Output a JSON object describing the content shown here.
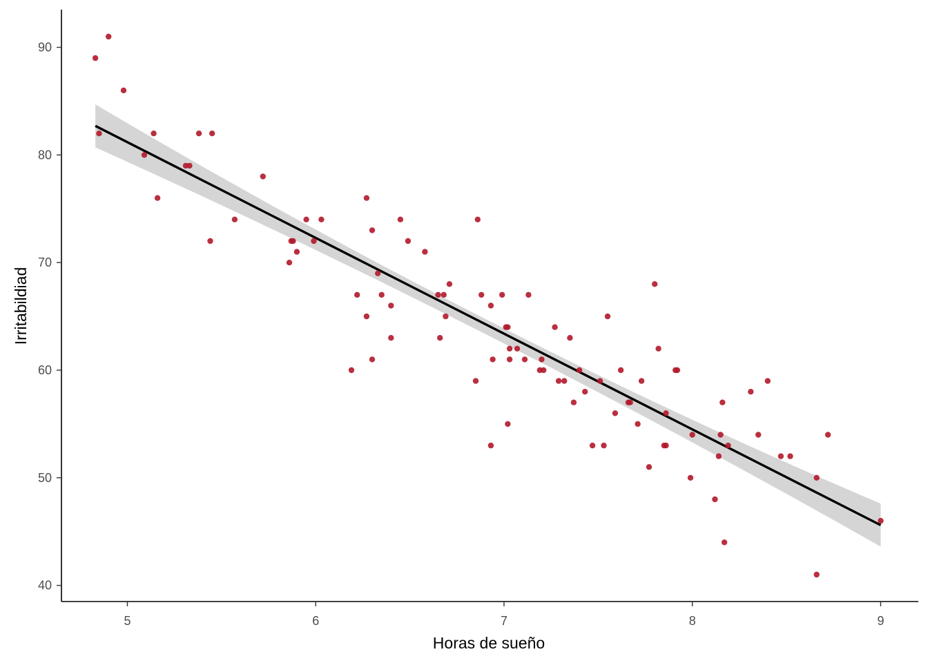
{
  "chart_data": {
    "type": "scatter",
    "title": "",
    "xlabel": "Horas de sueño",
    "ylabel": "Irritabildiad",
    "xlim": [
      4.65,
      9.2
    ],
    "ylim": [
      38.5,
      93.5
    ],
    "x_ticks": [
      5,
      6,
      7,
      8,
      9
    ],
    "y_ticks": [
      40,
      50,
      60,
      70,
      80,
      90
    ],
    "grid": false,
    "legend": "none",
    "point_color": "#b2182b",
    "line_color": "#000000",
    "band_color": "#d0d0d0",
    "points": [
      [
        4.83,
        89
      ],
      [
        4.85,
        82
      ],
      [
        4.9,
        91
      ],
      [
        4.98,
        86
      ],
      [
        5.09,
        80
      ],
      [
        5.14,
        82
      ],
      [
        5.16,
        76
      ],
      [
        5.31,
        79
      ],
      [
        5.33,
        79
      ],
      [
        5.38,
        82
      ],
      [
        5.44,
        72
      ],
      [
        5.45,
        82
      ],
      [
        5.57,
        74
      ],
      [
        5.72,
        78
      ],
      [
        5.86,
        70
      ],
      [
        5.87,
        72
      ],
      [
        5.88,
        72
      ],
      [
        5.9,
        71
      ],
      [
        5.95,
        74
      ],
      [
        5.99,
        72
      ],
      [
        6.03,
        74
      ],
      [
        6.19,
        60
      ],
      [
        6.22,
        67
      ],
      [
        6.27,
        65
      ],
      [
        6.27,
        76
      ],
      [
        6.3,
        61
      ],
      [
        6.3,
        73
      ],
      [
        6.33,
        69
      ],
      [
        6.35,
        67
      ],
      [
        6.4,
        66
      ],
      [
        6.4,
        63
      ],
      [
        6.45,
        74
      ],
      [
        6.49,
        72
      ],
      [
        6.58,
        71
      ],
      [
        6.65,
        67
      ],
      [
        6.66,
        63
      ],
      [
        6.68,
        67
      ],
      [
        6.69,
        65
      ],
      [
        6.71,
        68
      ],
      [
        6.85,
        59
      ],
      [
        6.86,
        74
      ],
      [
        6.88,
        67
      ],
      [
        6.93,
        53
      ],
      [
        6.93,
        66
      ],
      [
        6.94,
        61
      ],
      [
        6.99,
        67
      ],
      [
        7.01,
        64
      ],
      [
        7.02,
        64
      ],
      [
        7.02,
        55
      ],
      [
        7.03,
        61
      ],
      [
        7.03,
        62
      ],
      [
        7.07,
        62
      ],
      [
        7.11,
        61
      ],
      [
        7.13,
        67
      ],
      [
        7.19,
        60
      ],
      [
        7.2,
        61
      ],
      [
        7.21,
        60
      ],
      [
        7.27,
        64
      ],
      [
        7.29,
        59
      ],
      [
        7.32,
        59
      ],
      [
        7.35,
        63
      ],
      [
        7.37,
        57
      ],
      [
        7.4,
        60
      ],
      [
        7.43,
        58
      ],
      [
        7.47,
        53
      ],
      [
        7.51,
        59
      ],
      [
        7.53,
        53
      ],
      [
        7.55,
        65
      ],
      [
        7.59,
        56
      ],
      [
        7.62,
        60
      ],
      [
        7.66,
        57
      ],
      [
        7.67,
        57
      ],
      [
        7.71,
        55
      ],
      [
        7.73,
        59
      ],
      [
        7.77,
        51
      ],
      [
        7.8,
        68
      ],
      [
        7.82,
        62
      ],
      [
        7.85,
        53
      ],
      [
        7.86,
        53
      ],
      [
        7.86,
        56
      ],
      [
        7.91,
        60
      ],
      [
        7.92,
        60
      ],
      [
        7.99,
        50
      ],
      [
        8.0,
        54
      ],
      [
        8.12,
        48
      ],
      [
        8.14,
        52
      ],
      [
        8.15,
        54
      ],
      [
        8.16,
        57
      ],
      [
        8.17,
        44
      ],
      [
        8.19,
        53
      ],
      [
        8.31,
        58
      ],
      [
        8.35,
        54
      ],
      [
        8.4,
        59
      ],
      [
        8.47,
        52
      ],
      [
        8.52,
        52
      ],
      [
        8.66,
        41
      ],
      [
        8.66,
        50
      ],
      [
        8.72,
        54
      ],
      [
        9.0,
        46
      ]
    ],
    "regression": {
      "x": [
        4.83,
        9.0
      ],
      "fit": [
        82.7,
        45.6
      ],
      "ci_lower": [
        80.7,
        43.6
      ],
      "ci_upper": [
        84.7,
        47.6
      ],
      "ci_lower_mid": 63.1,
      "ci_upper_mid": 64.5,
      "x_mid": 6.93
    }
  }
}
